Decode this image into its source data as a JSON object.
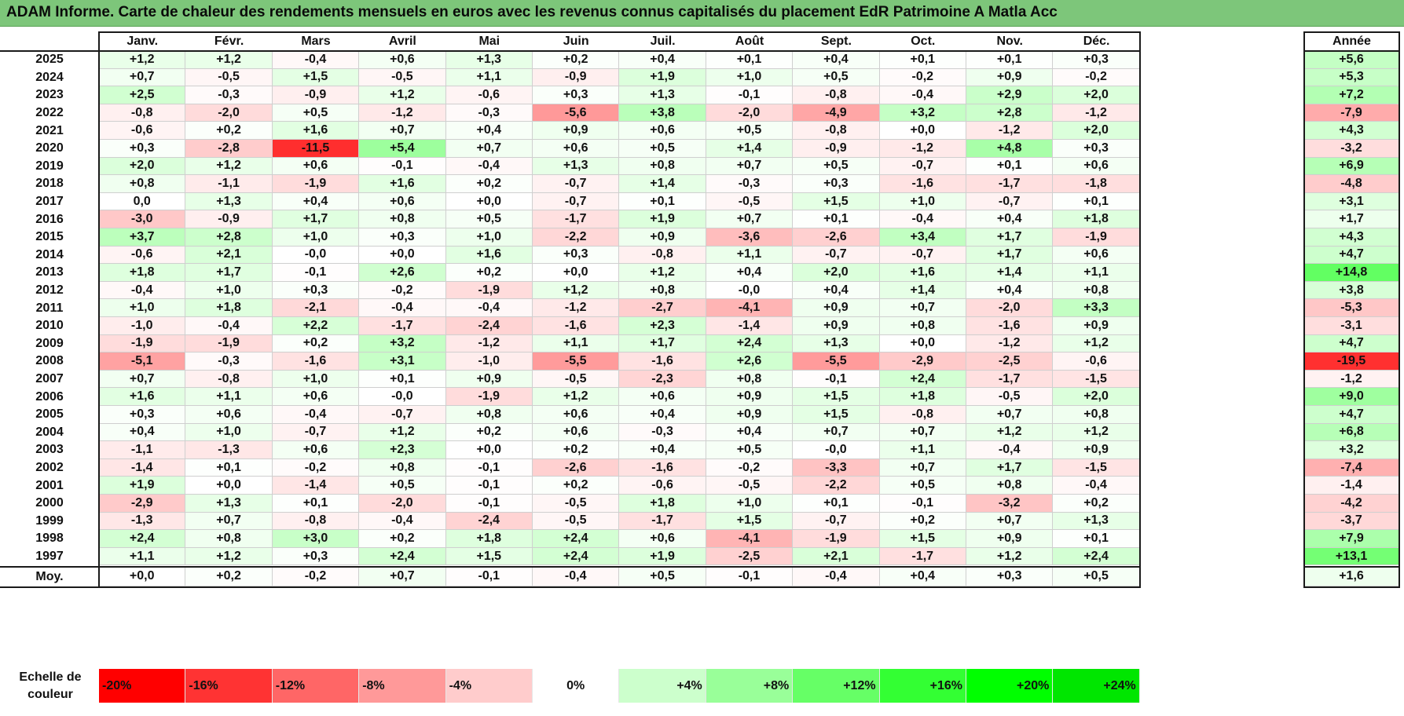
{
  "title": "ADAM Informe. Carte de chaleur des rendements mensuels en euros avec les revenus connus capitalisés du placement EdR Patrimoine A Matla Acc",
  "chart_data": {
    "type": "heatmap",
    "title": "ADAM Informe. Carte de chaleur des rendements mensuels en euros avec les revenus connus capitalisés du placement EdR Patrimoine A Matla Acc",
    "columns": [
      "Janv.",
      "Févr.",
      "Mars",
      "Avril",
      "Mai",
      "Juin",
      "Juil.",
      "Août",
      "Sept.",
      "Oct.",
      "Nov.",
      "Déc."
    ],
    "annual_label": "Année",
    "rows": [
      {
        "year": "2025",
        "values": [
          "+1,2",
          "+1,2",
          "-0,4",
          "+0,6",
          "+1,3",
          "+0,2",
          "+0,4",
          "+0,1",
          "+0,4",
          "+0,1",
          "+0,1",
          "+0,3"
        ],
        "annual": "+5,6"
      },
      {
        "year": "2024",
        "values": [
          "+0,7",
          "-0,5",
          "+1,5",
          "-0,5",
          "+1,1",
          "-0,9",
          "+1,9",
          "+1,0",
          "+0,5",
          "-0,2",
          "+0,9",
          "-0,2"
        ],
        "annual": "+5,3"
      },
      {
        "year": "2023",
        "values": [
          "+2,5",
          "-0,3",
          "-0,9",
          "+1,2",
          "-0,6",
          "+0,3",
          "+1,3",
          "-0,1",
          "-0,8",
          "-0,4",
          "+2,9",
          "+2,0"
        ],
        "annual": "+7,2"
      },
      {
        "year": "2022",
        "values": [
          "-0,8",
          "-2,0",
          "+0,5",
          "-1,2",
          "-0,3",
          "-5,6",
          "+3,8",
          "-2,0",
          "-4,9",
          "+3,2",
          "+2,8",
          "-1,2"
        ],
        "annual": "-7,9"
      },
      {
        "year": "2021",
        "values": [
          "-0,6",
          "+0,2",
          "+1,6",
          "+0,7",
          "+0,4",
          "+0,9",
          "+0,6",
          "+0,5",
          "-0,8",
          "+0,0",
          "-1,2",
          "+2,0"
        ],
        "annual": "+4,3"
      },
      {
        "year": "2020",
        "values": [
          "+0,3",
          "-2,8",
          "-11,5",
          "+5,4",
          "+0,7",
          "+0,6",
          "+0,5",
          "+1,4",
          "-0,9",
          "-1,2",
          "+4,8",
          "+0,3"
        ],
        "annual": "-3,2"
      },
      {
        "year": "2019",
        "values": [
          "+2,0",
          "+1,2",
          "+0,6",
          "-0,1",
          "-0,4",
          "+1,3",
          "+0,8",
          "+0,7",
          "+0,5",
          "-0,7",
          "+0,1",
          "+0,6"
        ],
        "annual": "+6,9"
      },
      {
        "year": "2018",
        "values": [
          "+0,8",
          "-1,1",
          "-1,9",
          "+1,6",
          "+0,2",
          "-0,7",
          "+1,4",
          "-0,3",
          "+0,3",
          "-1,6",
          "-1,7",
          "-1,8"
        ],
        "annual": "-4,8"
      },
      {
        "year": "2017",
        "values": [
          "0,0",
          "+1,3",
          "+0,4",
          "+0,6",
          "+0,0",
          "-0,7",
          "+0,1",
          "-0,5",
          "+1,5",
          "+1,0",
          "-0,7",
          "+0,1"
        ],
        "annual": "+3,1"
      },
      {
        "year": "2016",
        "values": [
          "-3,0",
          "-0,9",
          "+1,7",
          "+0,8",
          "+0,5",
          "-1,7",
          "+1,9",
          "+0,7",
          "+0,1",
          "-0,4",
          "+0,4",
          "+1,8"
        ],
        "annual": "+1,7"
      },
      {
        "year": "2015",
        "values": [
          "+3,7",
          "+2,8",
          "+1,0",
          "+0,3",
          "+1,0",
          "-2,2",
          "+0,9",
          "-3,6",
          "-2,6",
          "+3,4",
          "+1,7",
          "-1,9"
        ],
        "annual": "+4,3"
      },
      {
        "year": "2014",
        "values": [
          "-0,6",
          "+2,1",
          "-0,0",
          "+0,0",
          "+1,6",
          "+0,3",
          "-0,8",
          "+1,1",
          "-0,7",
          "-0,7",
          "+1,7",
          "+0,6"
        ],
        "annual": "+4,7"
      },
      {
        "year": "2013",
        "values": [
          "+1,8",
          "+1,7",
          "-0,1",
          "+2,6",
          "+0,2",
          "+0,0",
          "+1,2",
          "+0,4",
          "+2,0",
          "+1,6",
          "+1,4",
          "+1,1"
        ],
        "annual": "+14,8"
      },
      {
        "year": "2012",
        "values": [
          "-0,4",
          "+1,0",
          "+0,3",
          "-0,2",
          "-1,9",
          "+1,2",
          "+0,8",
          "-0,0",
          "+0,4",
          "+1,4",
          "+0,4",
          "+0,8"
        ],
        "annual": "+3,8"
      },
      {
        "year": "2011",
        "values": [
          "+1,0",
          "+1,8",
          "-2,1",
          "-0,4",
          "-0,4",
          "-1,2",
          "-2,7",
          "-4,1",
          "+0,9",
          "+0,7",
          "-2,0",
          "+3,3"
        ],
        "annual": "-5,3"
      },
      {
        "year": "2010",
        "values": [
          "-1,0",
          "-0,4",
          "+2,2",
          "-1,7",
          "-2,4",
          "-1,6",
          "+2,3",
          "-1,4",
          "+0,9",
          "+0,8",
          "-1,6",
          "+0,9"
        ],
        "annual": "-3,1"
      },
      {
        "year": "2009",
        "values": [
          "-1,9",
          "-1,9",
          "+0,2",
          "+3,2",
          "-1,2",
          "+1,1",
          "+1,7",
          "+2,4",
          "+1,3",
          "+0,0",
          "-1,2",
          "+1,2"
        ],
        "annual": "+4,7"
      },
      {
        "year": "2008",
        "values": [
          "-5,1",
          "-0,3",
          "-1,6",
          "+3,1",
          "-1,0",
          "-5,5",
          "-1,6",
          "+2,6",
          "-5,5",
          "-2,9",
          "-2,5",
          "-0,6"
        ],
        "annual": "-19,5"
      },
      {
        "year": "2007",
        "values": [
          "+0,7",
          "-0,8",
          "+1,0",
          "+0,1",
          "+0,9",
          "-0,5",
          "-2,3",
          "+0,8",
          "-0,1",
          "+2,4",
          "-1,7",
          "-1,5"
        ],
        "annual": "-1,2"
      },
      {
        "year": "2006",
        "values": [
          "+1,6",
          "+1,1",
          "+0,6",
          "-0,0",
          "-1,9",
          "+1,2",
          "+0,6",
          "+0,9",
          "+1,5",
          "+1,8",
          "-0,5",
          "+2,0"
        ],
        "annual": "+9,0"
      },
      {
        "year": "2005",
        "values": [
          "+0,3",
          "+0,6",
          "-0,4",
          "-0,7",
          "+0,8",
          "+0,6",
          "+0,4",
          "+0,9",
          "+1,5",
          "-0,8",
          "+0,7",
          "+0,8"
        ],
        "annual": "+4,7"
      },
      {
        "year": "2004",
        "values": [
          "+0,4",
          "+1,0",
          "-0,7",
          "+1,2",
          "+0,2",
          "+0,6",
          "-0,3",
          "+0,4",
          "+0,7",
          "+0,7",
          "+1,2",
          "+1,2"
        ],
        "annual": "+6,8"
      },
      {
        "year": "2003",
        "values": [
          "-1,1",
          "-1,3",
          "+0,6",
          "+2,3",
          "+0,0",
          "+0,2",
          "+0,4",
          "+0,5",
          "-0,0",
          "+1,1",
          "-0,4",
          "+0,9"
        ],
        "annual": "+3,2"
      },
      {
        "year": "2002",
        "values": [
          "-1,4",
          "+0,1",
          "-0,2",
          "+0,8",
          "-0,1",
          "-2,6",
          "-1,6",
          "-0,2",
          "-3,3",
          "+0,7",
          "+1,7",
          "-1,5"
        ],
        "annual": "-7,4"
      },
      {
        "year": "2001",
        "values": [
          "+1,9",
          "+0,0",
          "-1,4",
          "+0,5",
          "-0,1",
          "+0,2",
          "-0,6",
          "-0,5",
          "-2,2",
          "+0,5",
          "+0,8",
          "-0,4"
        ],
        "annual": "-1,4"
      },
      {
        "year": "2000",
        "values": [
          "-2,9",
          "+1,3",
          "+0,1",
          "-2,0",
          "-0,1",
          "-0,5",
          "+1,8",
          "+1,0",
          "+0,1",
          "-0,1",
          "-3,2",
          "+0,2"
        ],
        "annual": "-4,2"
      },
      {
        "year": "1999",
        "values": [
          "-1,3",
          "+0,7",
          "-0,8",
          "-0,4",
          "-2,4",
          "-0,5",
          "-1,7",
          "+1,5",
          "-0,7",
          "+0,2",
          "+0,7",
          "+1,3"
        ],
        "annual": "-3,7"
      },
      {
        "year": "1998",
        "values": [
          "+2,4",
          "+0,8",
          "+3,0",
          "+0,2",
          "+1,8",
          "+2,4",
          "+0,6",
          "-4,1",
          "-1,9",
          "+1,5",
          "+0,9",
          "+0,1"
        ],
        "annual": "+7,9"
      },
      {
        "year": "1997",
        "values": [
          "+1,1",
          "+1,2",
          "+0,3",
          "+2,4",
          "+1,5",
          "+2,4",
          "+1,9",
          "-2,5",
          "+2,1",
          "-1,7",
          "+1,2",
          "+2,4"
        ],
        "annual": "+13,1"
      }
    ],
    "average": {
      "label": "Moy.",
      "values": [
        "+0,0",
        "+0,2",
        "-0,2",
        "+0,7",
        "-0,1",
        "-0,4",
        "+0,5",
        "-0,1",
        "-0,4",
        "+0,4",
        "+0,3",
        "+0,5"
      ],
      "annual": "+1,6"
    },
    "color_scale": {
      "label": "Echelle de couleur",
      "stops": [
        {
          "label": "-20%",
          "value": -20,
          "color": "#ff0000"
        },
        {
          "label": "-16%",
          "value": -16,
          "color": "#ff3333"
        },
        {
          "label": "-12%",
          "value": -12,
          "color": "#ff6666"
        },
        {
          "label": "-8%",
          "value": -8,
          "color": "#ff9999"
        },
        {
          "label": "-4%",
          "value": -4,
          "color": "#ffcccc"
        },
        {
          "label": "0%",
          "value": 0,
          "color": "#ffffff"
        },
        {
          "label": "+4%",
          "value": 4,
          "color": "#ccffcc"
        },
        {
          "label": "+8%",
          "value": 8,
          "color": "#99ff99"
        },
        {
          "label": "+12%",
          "value": 12,
          "color": "#66ff66"
        },
        {
          "label": "+16%",
          "value": 16,
          "color": "#33ff33"
        },
        {
          "label": "+20%",
          "value": 20,
          "color": "#00ff00"
        },
        {
          "label": "+24%",
          "value": 24,
          "color": "#00e600"
        }
      ]
    }
  }
}
